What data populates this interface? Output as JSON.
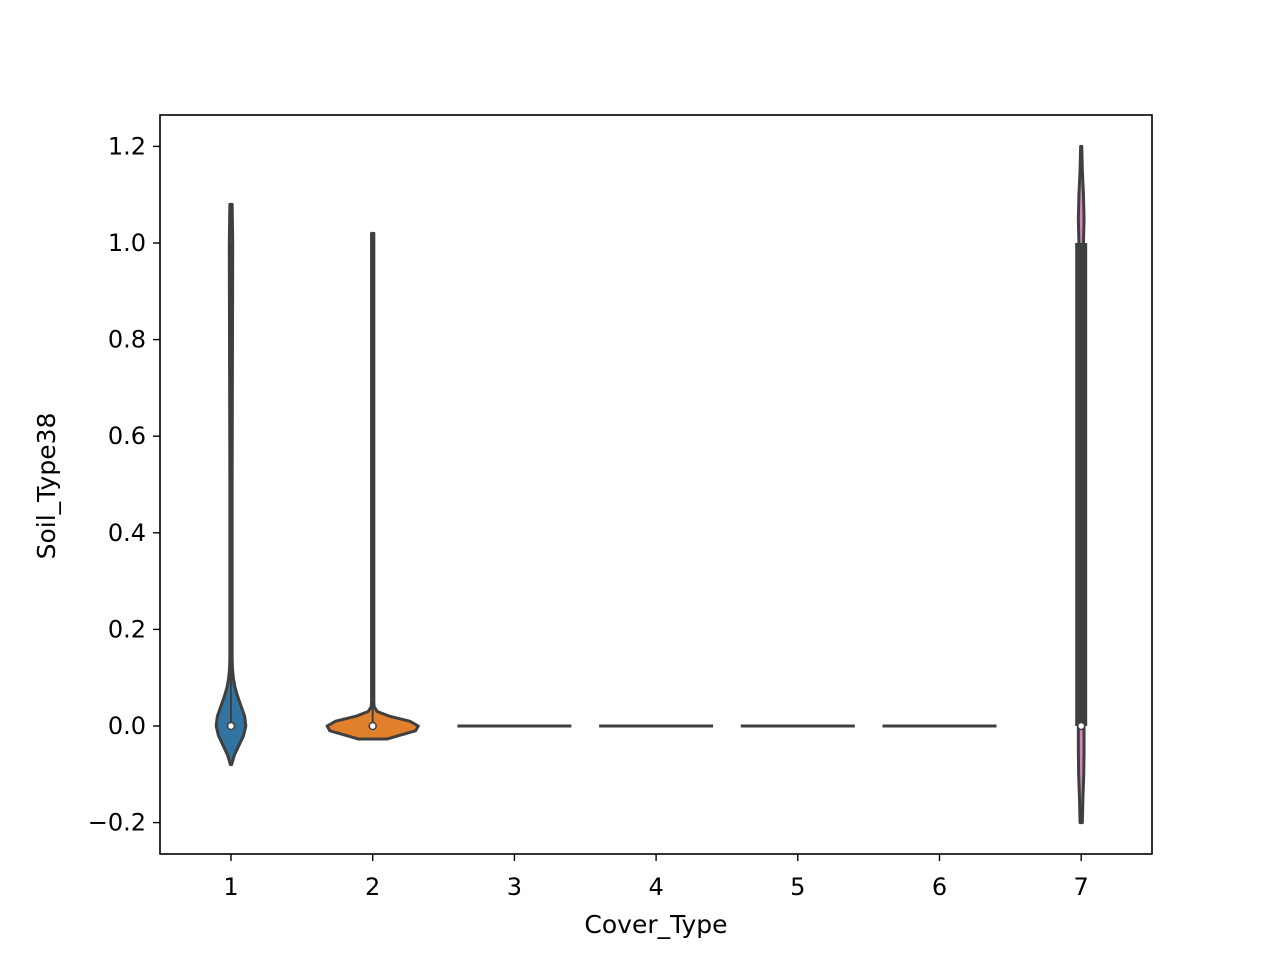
{
  "chart_data": {
    "type": "violin",
    "xlabel": "Cover_Type",
    "ylabel": "Soil_Type38",
    "categories": [
      "1",
      "2",
      "3",
      "4",
      "5",
      "6",
      "7"
    ],
    "ylim": [
      -0.265,
      1.265
    ],
    "yticks": [
      -0.2,
      0.0,
      0.2,
      0.4,
      0.6,
      0.8,
      1.0,
      1.2
    ],
    "ytick_labels": [
      "−0.2",
      "0.0",
      "0.2",
      "0.4",
      "0.6",
      "0.8",
      "1.0",
      "1.2"
    ],
    "grid": false,
    "legend": "none",
    "series": [
      {
        "category": "1",
        "color": "#3274a1",
        "median": 0.0,
        "q1": 0.0,
        "q3": 0.0,
        "min": 0.0,
        "max": 1.0,
        "kde_min": -0.08,
        "kde_max": 1.08,
        "profile": [
          [
            -0.08,
            0.01
          ],
          [
            -0.06,
            0.06
          ],
          [
            -0.04,
            0.14
          ],
          [
            -0.02,
            0.22
          ],
          [
            0.0,
            0.26
          ],
          [
            0.02,
            0.24
          ],
          [
            0.04,
            0.18
          ],
          [
            0.06,
            0.12
          ],
          [
            0.08,
            0.07
          ],
          [
            0.1,
            0.04
          ],
          [
            0.12,
            0.025
          ],
          [
            0.14,
            0.02
          ],
          [
            0.5,
            0.02
          ],
          [
            1.0,
            0.03
          ],
          [
            1.08,
            0.02
          ]
        ]
      },
      {
        "category": "2",
        "color": "#e1812c",
        "median": 0.0,
        "q1": 0.0,
        "q3": 0.0,
        "min": 0.0,
        "max": 1.0,
        "kde_min": -0.027,
        "kde_max": 1.02,
        "profile": [
          [
            -0.027,
            0.25
          ],
          [
            -0.02,
            0.45
          ],
          [
            -0.01,
            0.75
          ],
          [
            0.0,
            0.8
          ],
          [
            0.01,
            0.65
          ],
          [
            0.02,
            0.3
          ],
          [
            0.03,
            0.08
          ],
          [
            0.04,
            0.025
          ],
          [
            0.05,
            0.02
          ],
          [
            1.02,
            0.02
          ]
        ]
      },
      {
        "category": "3",
        "color": "#3a923a",
        "median": 0.0,
        "q1": 0.0,
        "q3": 0.0,
        "min": 0.0,
        "max": 0.0,
        "kde_min": 0.0,
        "kde_max": 0.0,
        "profile": []
      },
      {
        "category": "4",
        "color": "#c03d3e",
        "median": 0.0,
        "q1": 0.0,
        "q3": 0.0,
        "min": 0.0,
        "max": 0.0,
        "kde_min": 0.0,
        "kde_max": 0.0,
        "profile": []
      },
      {
        "category": "5",
        "color": "#9372b2",
        "median": 0.0,
        "q1": 0.0,
        "q3": 0.0,
        "min": 0.0,
        "max": 0.0,
        "kde_min": 0.0,
        "kde_max": 0.0,
        "profile": []
      },
      {
        "category": "6",
        "color": "#845b53",
        "median": 0.0,
        "q1": 0.0,
        "q3": 0.0,
        "min": 0.0,
        "max": 0.0,
        "kde_min": 0.0,
        "kde_max": 0.0,
        "profile": []
      },
      {
        "category": "7",
        "color": "#d684bd",
        "median": 0.0,
        "q1": 0.0,
        "q3": 1.0,
        "min": 0.0,
        "max": 1.0,
        "kde_min": -0.2,
        "kde_max": 1.2,
        "profile": [
          [
            -0.2,
            0.02
          ],
          [
            -0.15,
            0.03
          ],
          [
            -0.1,
            0.045
          ],
          [
            -0.05,
            0.05
          ],
          [
            0.0,
            0.05
          ],
          [
            0.05,
            0.04
          ],
          [
            0.1,
            0.03
          ],
          [
            0.2,
            0.02
          ],
          [
            0.5,
            0.02
          ],
          [
            0.9,
            0.02
          ],
          [
            1.0,
            0.04
          ],
          [
            1.05,
            0.05
          ],
          [
            1.1,
            0.04
          ],
          [
            1.15,
            0.02
          ],
          [
            1.2,
            0.01
          ]
        ]
      }
    ]
  }
}
